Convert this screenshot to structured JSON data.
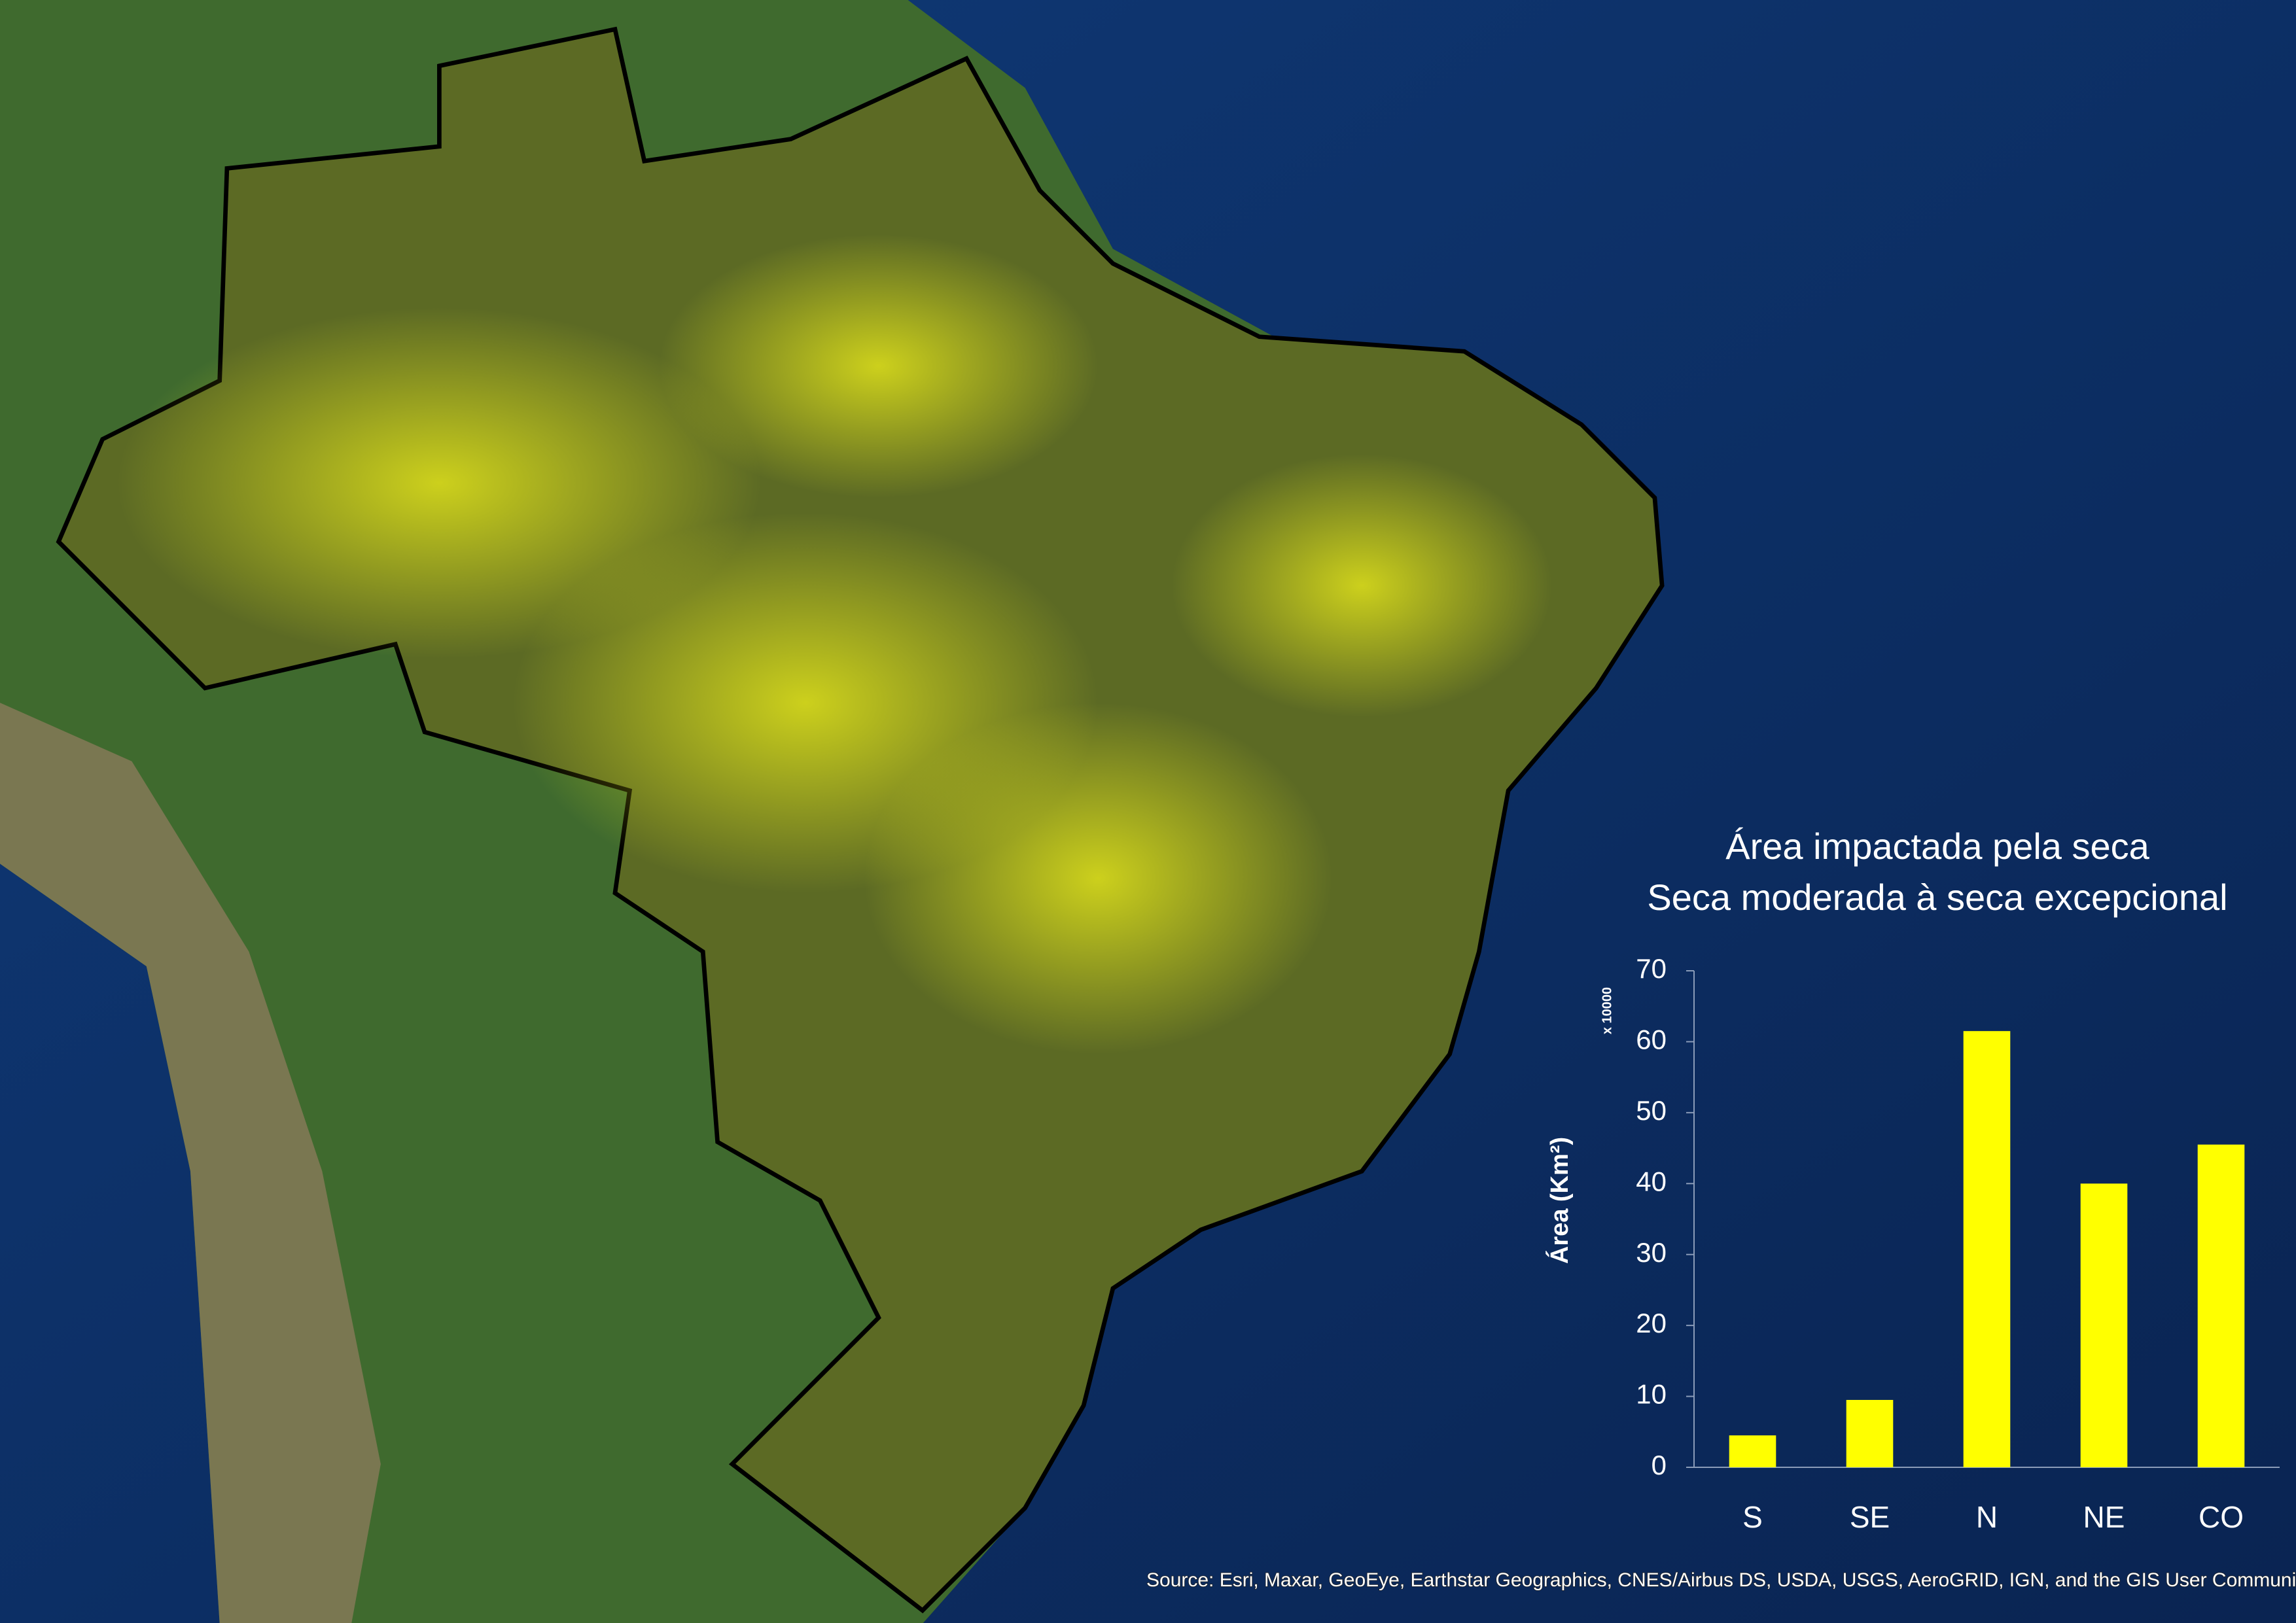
{
  "chart_data": {
    "type": "bar",
    "title": "Área impactada pela seca",
    "subtitle": "Seca moderada à seca excepcional",
    "y_label": "Área (Km²)",
    "y_multiplier": "x 10000",
    "categories": [
      "S",
      "SE",
      "N",
      "NE",
      "CO"
    ],
    "values": [
      4.5,
      9.5,
      61.5,
      40,
      45.5
    ],
    "color": "#ffff00",
    "ylim": [
      0,
      70
    ],
    "yticks": [
      0,
      10,
      20,
      30,
      40,
      50,
      60,
      70
    ],
    "grid": false
  },
  "source": "Source: Esri, Maxar, GeoEye, Earthstar Geographics, CNES/Airbus DS, USDA, USGS, AeroGRID, IGN, and the GIS User Community"
}
